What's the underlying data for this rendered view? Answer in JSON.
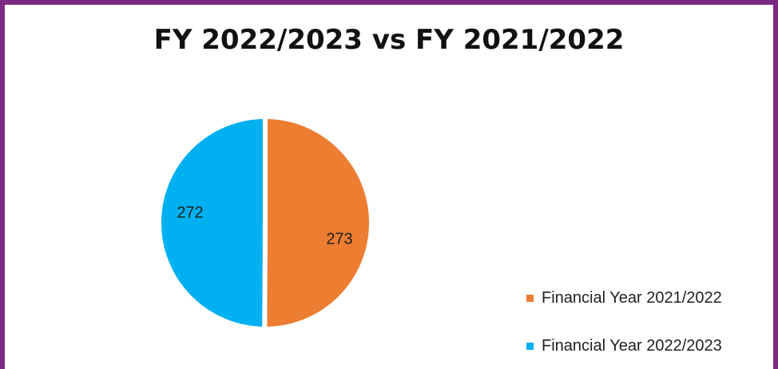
{
  "chart_data": {
    "type": "pie",
    "title": "FY 2022/2023 vs FY 2021/2022",
    "categories": [
      "Financial Year 2021/2022",
      "Financial Year 2022/2023"
    ],
    "values": [
      273,
      272
    ],
    "colors": [
      "#ed7d31",
      "#00b0f0"
    ],
    "data_labels": [
      "273",
      "272"
    ],
    "legend_placement": "bottom-right"
  },
  "colors": {
    "frame": "#7b2a82"
  }
}
